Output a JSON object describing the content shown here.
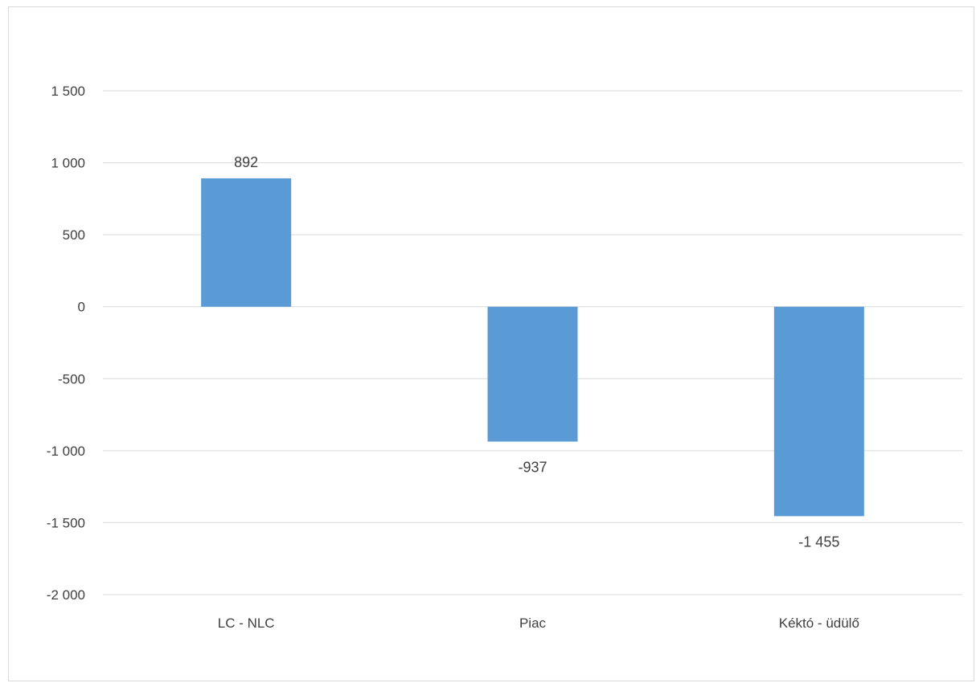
{
  "chart_data": {
    "type": "bar",
    "categories": [
      "LC - NLC",
      "Piac",
      "Kéktó - üdülő"
    ],
    "values": [
      892,
      -937,
      -1455
    ],
    "data_labels": [
      "892",
      "-937",
      "-1 455"
    ],
    "ylim": [
      -2000,
      1500
    ],
    "yticks": [
      1500,
      1000,
      500,
      0,
      -500,
      -1000,
      -1500,
      -2000
    ],
    "ytick_labels": [
      "1 500",
      "1 000",
      "500",
      "0",
      "-500",
      "-1 000",
      "-1 500",
      "-2 000"
    ],
    "grid": true,
    "legend": "none",
    "bar_color": "#5b9bd5",
    "gridline_color": "#d9d9d9"
  }
}
